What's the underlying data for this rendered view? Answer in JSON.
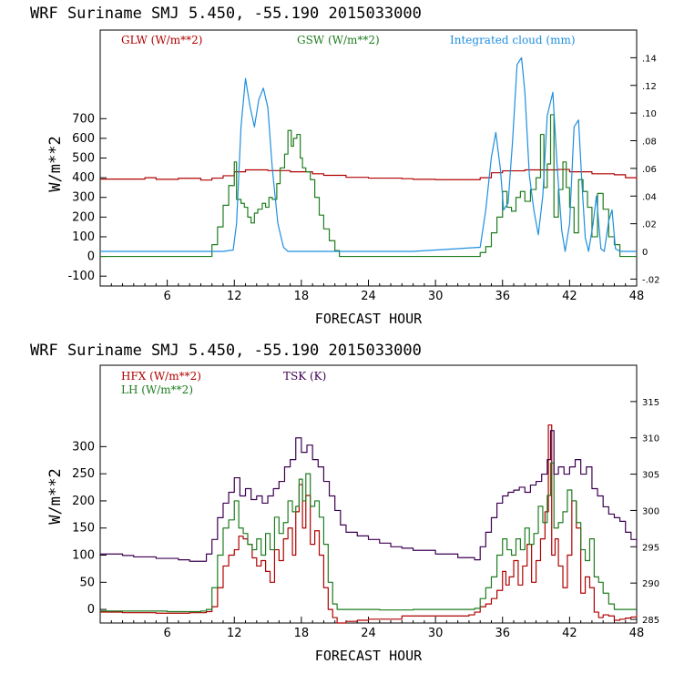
{
  "colors": {
    "red": "#b00000",
    "green": "#1e7d1e",
    "blue": "#1e8fe0",
    "purple": "#3c0050"
  },
  "chart_data": [
    {
      "type": "line",
      "title": "WRF  Suriname SMJ  5.450, -55.190  2015033000",
      "xlabel": "FORECAST HOUR",
      "ylabel": "W/m**2",
      "xlim": [
        0,
        48
      ],
      "ylim": [
        -150,
        1150
      ],
      "y2lim": [
        -0.025,
        0.16
      ],
      "xticks": [
        6,
        12,
        18,
        24,
        30,
        36,
        42,
        48
      ],
      "yticks": [
        -100,
        0,
        100,
        200,
        300,
        400,
        500,
        600,
        700
      ],
      "y2ticks": [
        -0.02,
        0,
        0.02,
        0.04,
        0.06,
        0.08,
        0.1,
        0.12,
        0.14
      ],
      "y2ticklabels": [
        "-.02",
        "0",
        ".02",
        ".04",
        ".06",
        ".08",
        ".10",
        ".12",
        ".14"
      ],
      "series": [
        {
          "name": "GLW (W/m**2)",
          "color": "#b00000",
          "axis": "left",
          "step": true,
          "x": [
            0,
            3,
            4,
            5,
            7,
            9,
            10,
            11,
            12,
            13,
            15,
            17,
            19,
            20,
            22,
            24,
            27,
            28,
            30,
            33,
            34,
            35,
            36,
            38,
            41,
            42,
            44,
            46,
            47,
            48
          ],
          "y": [
            393,
            393,
            400,
            392,
            397,
            388,
            398,
            410,
            430,
            440,
            436,
            430,
            420,
            412,
            402,
            398,
            395,
            392,
            390,
            390,
            400,
            425,
            435,
            440,
            442,
            430,
            420,
            415,
            400,
            390
          ]
        },
        {
          "name": "GSW (W/m**2)",
          "color": "#1e7d1e",
          "axis": "left",
          "step": true,
          "x": [
            0,
            9.6,
            10,
            10.5,
            11,
            11.5,
            12,
            12.2,
            12.6,
            12.9,
            13.2,
            13.5,
            13.8,
            14.1,
            14.5,
            14.8,
            15.1,
            15.4,
            15.8,
            16.1,
            16.5,
            16.8,
            17.1,
            17.3,
            17.6,
            17.9,
            18.1,
            18.4,
            18.8,
            19.2,
            19.6,
            20,
            20.5,
            21,
            21.4,
            22,
            33.5,
            34,
            34.5,
            35,
            35.5,
            36,
            36.4,
            36.8,
            37.2,
            37.6,
            38,
            38.5,
            39,
            39.4,
            39.7,
            40,
            40.3,
            40.6,
            41,
            41.4,
            41.7,
            42,
            42.4,
            42.8,
            43.2,
            43.6,
            44,
            44.5,
            45,
            45.5,
            46,
            46.5,
            47,
            48
          ],
          "y": [
            0,
            0,
            60,
            150,
            260,
            360,
            480,
            290,
            270,
            250,
            200,
            170,
            220,
            240,
            270,
            250,
            300,
            290,
            370,
            450,
            520,
            640,
            560,
            600,
            620,
            500,
            450,
            430,
            390,
            300,
            210,
            140,
            80,
            30,
            0,
            0,
            0,
            20,
            50,
            120,
            200,
            330,
            250,
            230,
            300,
            330,
            280,
            340,
            400,
            620,
            350,
            470,
            720,
            200,
            340,
            480,
            350,
            250,
            120,
            390,
            330,
            250,
            100,
            320,
            240,
            100,
            60,
            0,
            0,
            0
          ]
        },
        {
          "name": "Integrated cloud (mm)",
          "color": "#1e8fe0",
          "axis": "right",
          "step": false,
          "x": [
            0,
            11,
            11.9,
            12.2,
            12.6,
            13,
            13.4,
            13.8,
            14.2,
            14.6,
            15,
            15.4,
            15.9,
            16.4,
            16.8,
            17.2,
            17.6,
            17.9,
            18.2,
            18.5,
            19,
            28,
            34,
            34.5,
            35,
            35.4,
            35.8,
            36.1,
            36.5,
            36.9,
            37.3,
            37.7,
            38,
            38.4,
            38.8,
            39.2,
            39.6,
            40,
            40.5,
            40.9,
            41.3,
            41.6,
            42,
            42.4,
            42.8,
            43.1,
            43.4,
            43.7,
            44.1,
            44.4,
            44.8,
            45.1,
            45.5,
            45.8,
            46.1,
            46.5,
            46.9,
            48
          ],
          "y": [
            0,
            0,
            0.001,
            0.02,
            0.09,
            0.125,
            0.105,
            0.09,
            0.11,
            0.118,
            0.104,
            0.06,
            0.02,
            0.003,
            0.0,
            0.0,
            0.0,
            0.0,
            0.0,
            0.0,
            0.0,
            0.0,
            0.003,
            0.03,
            0.068,
            0.086,
            0.06,
            0.03,
            0.035,
            0.08,
            0.135,
            0.14,
            0.115,
            0.055,
            0.03,
            0.012,
            0.04,
            0.098,
            0.115,
            0.06,
            0.015,
            0.0,
            0.02,
            0.09,
            0.095,
            0.05,
            0.01,
            0.0,
            0.02,
            0.04,
            0.002,
            0.0,
            0.022,
            0.03,
            0.002,
            0.0,
            0.0,
            0.0
          ]
        }
      ]
    },
    {
      "type": "line",
      "title": "WRF  Suriname SMJ  5.450, -55.190  2015033000",
      "xlabel": "FORECAST HOUR",
      "ylabel": "W/m**2",
      "xlim": [
        0,
        48
      ],
      "ylim": [
        -25,
        450
      ],
      "y2lim": [
        284.5,
        320
      ],
      "xticks": [
        6,
        12,
        18,
        24,
        30,
        36,
        42,
        48
      ],
      "yticks": [
        0,
        50,
        100,
        150,
        200,
        250,
        300
      ],
      "y2ticks": [
        285,
        290,
        295,
        300,
        305,
        310,
        315
      ],
      "series": [
        {
          "name": "HFX (W/m**2)",
          "color": "#b00000",
          "axis": "left",
          "step": true,
          "x": [
            0,
            2,
            5,
            8,
            9.5,
            10,
            10.5,
            11,
            11.5,
            12,
            12.4,
            12.8,
            13.2,
            13.6,
            14,
            14.4,
            14.8,
            15.2,
            15.6,
            16,
            16.4,
            16.8,
            17.2,
            17.5,
            17.8,
            18.1,
            18.4,
            18.8,
            19.2,
            19.6,
            20,
            20.4,
            20.8,
            21.2,
            22,
            23,
            24,
            27,
            30,
            33,
            33.5,
            34,
            34.5,
            35,
            35.5,
            36,
            36.3,
            36.6,
            37,
            37.4,
            37.8,
            38.2,
            38.6,
            39,
            39.4,
            39.8,
            40.1,
            40.4,
            40.7,
            41,
            41.4,
            41.8,
            42.2,
            42.6,
            43,
            43.4,
            43.8,
            44.2,
            44.6,
            45,
            45.5,
            46,
            46.5,
            47,
            47.5,
            48
          ],
          "y": [
            -5,
            -6,
            -7,
            -6,
            -4,
            5,
            40,
            80,
            100,
            110,
            135,
            130,
            120,
            95,
            80,
            90,
            70,
            50,
            110,
            90,
            130,
            150,
            100,
            180,
            230,
            150,
            210,
            120,
            145,
            100,
            40,
            0,
            -15,
            -25,
            -22,
            -20,
            -18,
            -12,
            -12,
            -10,
            -5,
            5,
            10,
            20,
            35,
            70,
            45,
            60,
            90,
            45,
            80,
            120,
            50,
            90,
            130,
            180,
            340,
            100,
            130,
            80,
            40,
            100,
            200,
            150,
            30,
            60,
            40,
            -5,
            -15,
            -10,
            -12,
            -20,
            -18,
            -16,
            -14,
            -10
          ]
        },
        {
          "name": "LH (W/m**2)",
          "color": "#1e7d1e",
          "axis": "left",
          "step": true,
          "x": [
            0,
            3,
            6,
            9,
            9.5,
            10,
            10.5,
            11,
            11.5,
            12,
            12.4,
            12.8,
            13.2,
            13.6,
            14,
            14.4,
            14.8,
            15.2,
            15.6,
            16,
            16.4,
            16.8,
            17.2,
            17.5,
            17.8,
            18.1,
            18.4,
            18.8,
            19.2,
            19.6,
            20,
            20.4,
            20.8,
            21.2,
            22,
            25,
            28,
            31,
            33.5,
            34,
            34.5,
            35,
            35.5,
            36,
            36.4,
            36.8,
            37.2,
            37.6,
            38,
            38.4,
            38.8,
            39.2,
            39.6,
            40,
            40.3,
            40.6,
            41,
            41.4,
            41.8,
            42.2,
            42.6,
            43,
            43.4,
            43.8,
            44.2,
            44.6,
            45,
            45.5,
            46,
            46.5,
            47,
            47.5,
            48
          ],
          "y": [
            -3,
            -3,
            -4,
            -3,
            0,
            40,
            100,
            150,
            165,
            200,
            150,
            140,
            120,
            110,
            130,
            100,
            140,
            110,
            170,
            140,
            160,
            200,
            180,
            190,
            240,
            200,
            250,
            190,
            200,
            170,
            120,
            50,
            10,
            0,
            0,
            -1,
            0,
            0,
            2,
            20,
            40,
            60,
            100,
            130,
            110,
            100,
            130,
            110,
            150,
            120,
            140,
            190,
            160,
            210,
            270,
            150,
            160,
            180,
            220,
            200,
            160,
            110,
            90,
            130,
            60,
            50,
            30,
            10,
            0,
            0,
            0,
            0,
            0
          ]
        },
        {
          "name": "TSK (K)",
          "color": "#3c0050",
          "axis": "right",
          "step": true,
          "x": [
            0,
            2,
            3,
            5,
            7,
            8,
            9,
            9.5,
            10,
            10.5,
            11,
            11.5,
            12,
            12.5,
            13,
            13.5,
            14,
            14.5,
            15,
            15.5,
            16,
            16.5,
            17,
            17.5,
            18,
            18.5,
            19,
            19.5,
            20,
            20.5,
            21,
            21.5,
            22,
            23,
            24,
            25,
            26,
            27,
            28,
            30,
            32,
            33.5,
            34,
            34.5,
            35,
            35.5,
            36,
            36.5,
            37,
            37.5,
            38,
            38.5,
            39,
            39.5,
            40,
            40.3,
            40.6,
            41,
            41.5,
            42,
            42.5,
            43,
            43.5,
            44,
            44.5,
            45,
            45.5,
            46,
            46.5,
            47,
            47.5,
            48
          ],
          "y": [
            294,
            293.8,
            293.6,
            293.4,
            293.2,
            293.0,
            293.0,
            294,
            296,
            299,
            301,
            302.5,
            304.5,
            302,
            303,
            301.5,
            302,
            301,
            302,
            303,
            304,
            306,
            307,
            310,
            308,
            309,
            307,
            306,
            304,
            302,
            300,
            298,
            297,
            296.5,
            296,
            295.5,
            295,
            294.8,
            294.5,
            294,
            293.5,
            293.2,
            295,
            297,
            299,
            301,
            302,
            302.5,
            302.8,
            303.2,
            302.5,
            303.5,
            304,
            305,
            307,
            311,
            305,
            306,
            305,
            306,
            307,
            305,
            306,
            303,
            302,
            300.5,
            299.5,
            299,
            298.5,
            297,
            296,
            295
          ]
        }
      ]
    }
  ]
}
